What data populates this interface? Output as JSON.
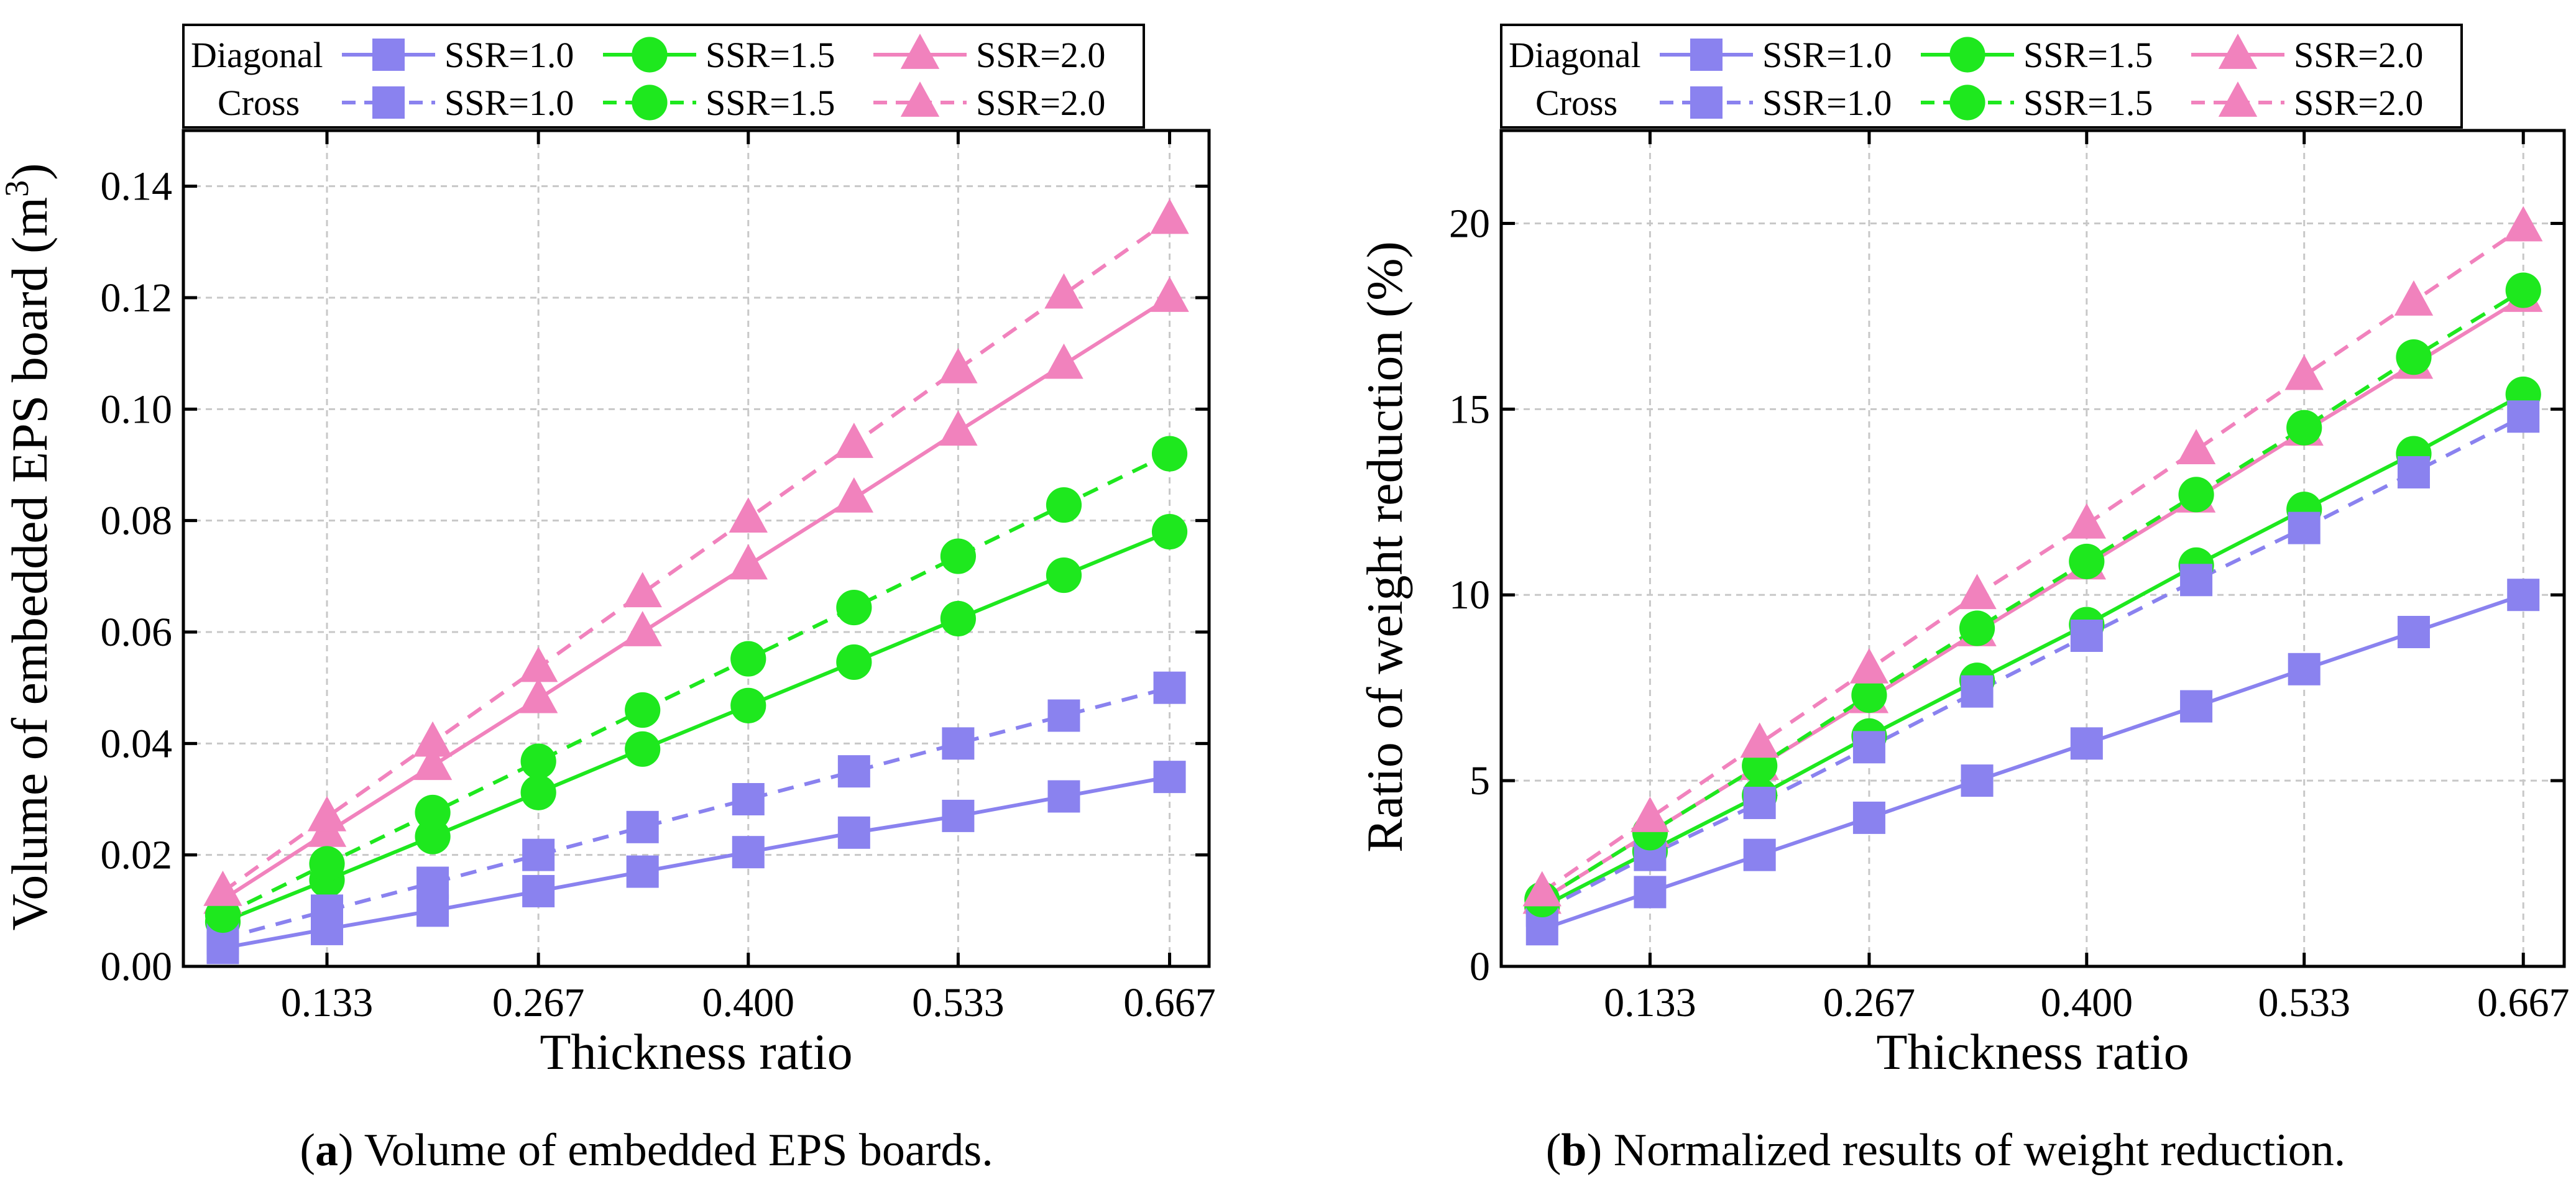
{
  "colors": {
    "blue": "#8a82ef",
    "green": "#1ee81e",
    "pink": "#f182bd",
    "grid": "#c8c8c8"
  },
  "chart_data": [
    {
      "type": "line",
      "panel": "a",
      "caption_letter": "a",
      "caption_text": " Volume of embedded EPS boards.",
      "xlabel": "Thickness ratio",
      "ylabel": "Volume of embedded EPS board (m",
      "ylabel_sup": "3",
      "ylabel_close": ")",
      "xlim": [
        0.042,
        0.692
      ],
      "ylim": [
        0,
        0.15
      ],
      "grid": true,
      "xticks": [
        0.133,
        0.267,
        0.4,
        0.533,
        0.667
      ],
      "xtick_labels": [
        "0.133",
        "0.267",
        "0.400",
        "0.533",
        "0.667"
      ],
      "yticks": [
        0,
        0.02,
        0.04,
        0.06,
        0.08,
        0.1,
        0.12,
        0.14
      ],
      "ytick_labels": [
        "0.00",
        "0.02",
        "0.04",
        "0.06",
        "0.08",
        "0.10",
        "0.12",
        "0.14"
      ],
      "x": [
        0.067,
        0.133,
        0.2,
        0.267,
        0.333,
        0.4,
        0.467,
        0.533,
        0.6,
        0.667
      ],
      "legend": {
        "position": "top",
        "row_labels": [
          "Diagonal",
          "Cross"
        ],
        "entries": [
          "SSR=1.0",
          "SSR=1.5",
          "SSR=2.0"
        ]
      },
      "series": [
        {
          "name": "Diagonal SSR=1.0",
          "group": "Diagonal",
          "color": "blue",
          "marker": "square",
          "dashed": false,
          "values": [
            0.0033,
            0.0067,
            0.01,
            0.0135,
            0.017,
            0.0205,
            0.024,
            0.027,
            0.0305,
            0.034
          ]
        },
        {
          "name": "Diagonal SSR=1.5",
          "group": "Diagonal",
          "color": "green",
          "marker": "circle",
          "dashed": false,
          "values": [
            0.008,
            0.0155,
            0.0233,
            0.0312,
            0.039,
            0.0468,
            0.0546,
            0.0624,
            0.0702,
            0.078
          ]
        },
        {
          "name": "Diagonal SSR=2.0",
          "group": "Diagonal",
          "color": "pink",
          "marker": "triangle",
          "dashed": false,
          "values": [
            0.012,
            0.024,
            0.036,
            0.048,
            0.06,
            0.072,
            0.084,
            0.096,
            0.108,
            0.12
          ]
        },
        {
          "name": "Cross SSR=1.0",
          "group": "Cross",
          "color": "blue",
          "marker": "square",
          "dashed": true,
          "values": [
            0.005,
            0.01,
            0.015,
            0.02,
            0.025,
            0.03,
            0.035,
            0.04,
            0.045,
            0.05
          ]
        },
        {
          "name": "Cross SSR=1.5",
          "group": "Cross",
          "color": "green",
          "marker": "circle",
          "dashed": true,
          "values": [
            0.0092,
            0.0184,
            0.0276,
            0.0368,
            0.046,
            0.0552,
            0.0644,
            0.0736,
            0.0828,
            0.092
          ]
        },
        {
          "name": "Cross SSR=2.0",
          "group": "Cross",
          "color": "pink",
          "marker": "triangle",
          "dashed": true,
          "values": [
            0.0134,
            0.0268,
            0.0402,
            0.0536,
            0.067,
            0.0804,
            0.0938,
            0.1072,
            0.1206,
            0.134
          ]
        }
      ]
    },
    {
      "type": "line",
      "panel": "b",
      "caption_letter": "b",
      "caption_text": " Normalized results of weight reduction.",
      "xlabel": "Thickness ratio",
      "ylabel": "Ratio of weight reduction (%)",
      "ylabel_sup": "",
      "ylabel_close": "",
      "xlim": [
        0.042,
        0.692
      ],
      "ylim": [
        0,
        22.5
      ],
      "grid": true,
      "xticks": [
        0.133,
        0.267,
        0.4,
        0.533,
        0.667
      ],
      "xtick_labels": [
        "0.133",
        "0.267",
        "0.400",
        "0.533",
        "0.667"
      ],
      "yticks": [
        0,
        5,
        10,
        15,
        20
      ],
      "ytick_labels": [
        "0",
        "5",
        "10",
        "15",
        "20"
      ],
      "x": [
        0.067,
        0.133,
        0.2,
        0.267,
        0.333,
        0.4,
        0.467,
        0.533,
        0.6,
        0.667
      ],
      "legend": {
        "position": "top",
        "row_labels": [
          "Diagonal",
          "Cross"
        ],
        "entries": [
          "SSR=1.0",
          "SSR=1.5",
          "SSR=2.0"
        ]
      },
      "series": [
        {
          "name": "Diagonal SSR=1.0",
          "group": "Diagonal",
          "color": "blue",
          "marker": "square",
          "dashed": false,
          "values": [
            1.0,
            2.0,
            3.0,
            4.0,
            5.0,
            6.0,
            7.0,
            8.0,
            9.0,
            10.0
          ]
        },
        {
          "name": "Diagonal SSR=1.5",
          "group": "Diagonal",
          "color": "green",
          "marker": "circle",
          "dashed": false,
          "values": [
            1.6,
            3.1,
            4.6,
            6.2,
            7.7,
            9.2,
            10.8,
            12.3,
            13.8,
            15.4
          ]
        },
        {
          "name": "Diagonal SSR=2.0",
          "group": "Diagonal",
          "color": "pink",
          "marker": "triangle",
          "dashed": false,
          "values": [
            1.8,
            3.6,
            5.4,
            7.2,
            9.0,
            10.8,
            12.6,
            14.4,
            16.2,
            18.0
          ]
        },
        {
          "name": "Cross SSR=1.0",
          "group": "Cross",
          "color": "blue",
          "marker": "square",
          "dashed": true,
          "values": [
            1.5,
            3.0,
            4.4,
            5.9,
            7.4,
            8.9,
            10.4,
            11.8,
            13.3,
            14.8
          ]
        },
        {
          "name": "Cross SSR=1.5",
          "group": "Cross",
          "color": "green",
          "marker": "circle",
          "dashed": true,
          "values": [
            1.8,
            3.6,
            5.4,
            7.3,
            9.1,
            10.9,
            12.7,
            14.5,
            16.4,
            18.2
          ]
        },
        {
          "name": "Cross SSR=2.0",
          "group": "Cross",
          "color": "pink",
          "marker": "triangle",
          "dashed": true,
          "values": [
            2.0,
            4.0,
            6.0,
            8.0,
            10.0,
            11.9,
            13.9,
            15.9,
            17.9,
            19.9
          ]
        }
      ]
    }
  ]
}
